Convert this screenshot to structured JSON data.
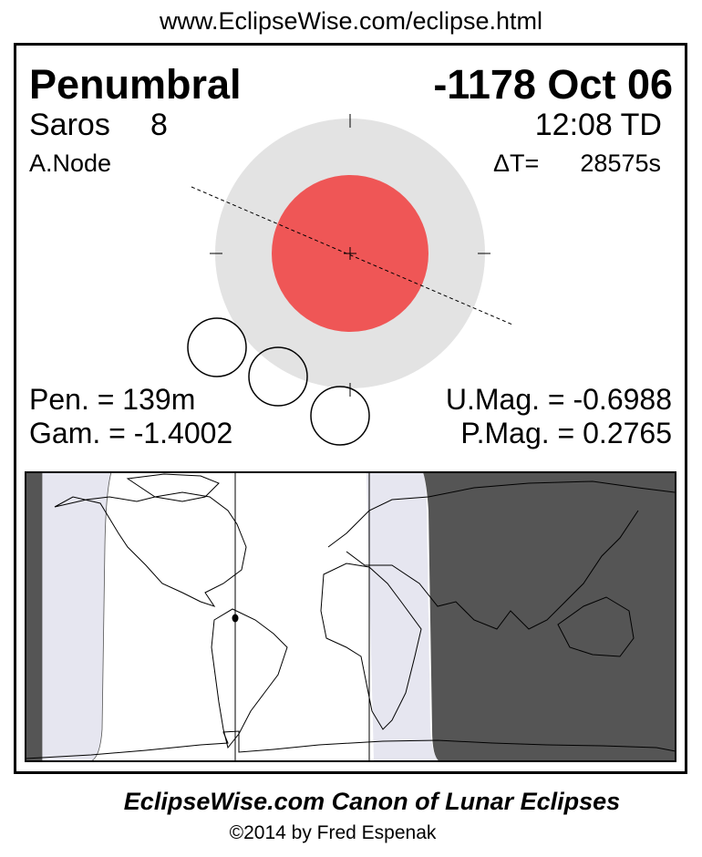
{
  "header_url": "www.EclipseWise.com/eclipse.html",
  "eclipse_type": "Penumbral",
  "date": "-1178 Oct 06",
  "saros_label": "Saros",
  "saros_number": "8",
  "time": "12:08 TD",
  "node": "A.Node",
  "delta_t_label": "ΔT=",
  "delta_t_value": "28575s",
  "pen_duration": "Pen. = 139m",
  "gamma": "Gam. = -1.4002",
  "umbral_magnitude": "U.Mag. = -0.6988",
  "penumbral_magnitude": "P.Mag. = 0.2765",
  "footer_title": "EclipseWise.com Canon of Lunar Eclipses",
  "footer_copyright": "©2014 by Fred Espenak",
  "colors": {
    "penumbra": "#e3e3e3",
    "umbra": "#ef5656",
    "night": "#555555",
    "penumbral_zone": "#e6e6f0"
  }
}
